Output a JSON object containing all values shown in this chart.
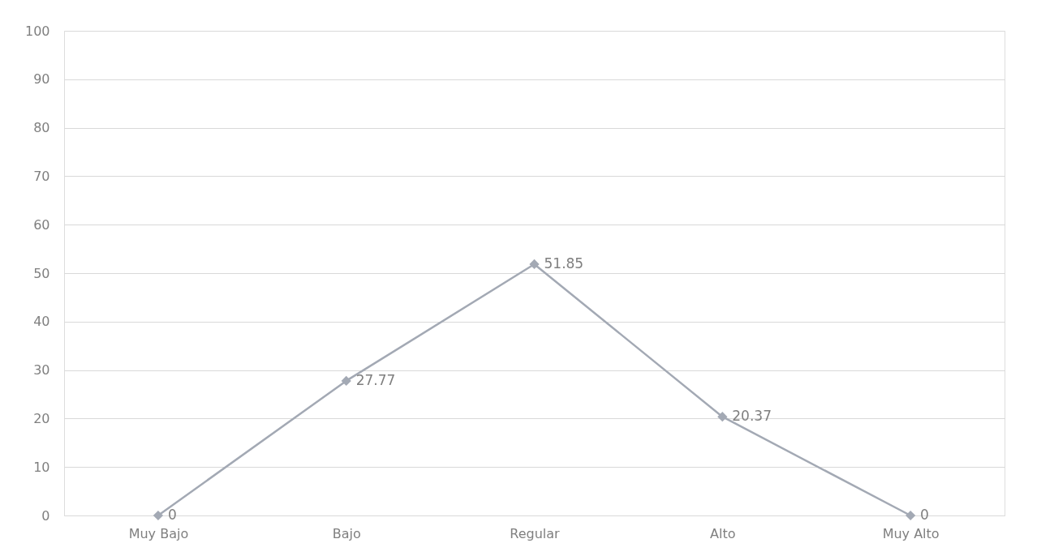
{
  "chart_data": {
    "type": "line",
    "categories": [
      "Muy Bajo",
      "Bajo",
      "Regular",
      "Alto",
      "Muy Alto"
    ],
    "series": [
      {
        "color": "#a3a9b4",
        "values": [
          0,
          27.77,
          51.85,
          20.37,
          0
        ]
      }
    ],
    "ylim": [
      0,
      100
    ],
    "yticks": [
      0,
      10,
      20,
      30,
      40,
      50,
      60,
      70,
      80,
      90,
      100
    ],
    "grid": "y",
    "marker": "diamond",
    "line_style": "solid",
    "data_labels": true
  }
}
